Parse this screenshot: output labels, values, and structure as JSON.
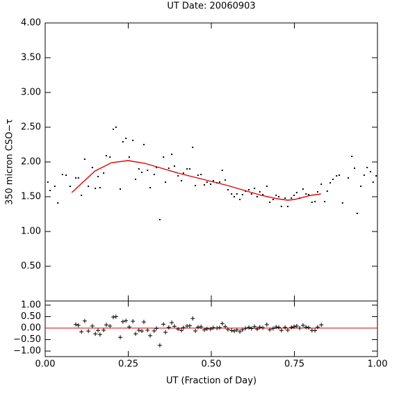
{
  "chart_data": [
    {
      "type": "scatter",
      "title": "UT Date: 20060903",
      "ylabel": "350 micron CSO−τ",
      "xlim": [
        0,
        1
      ],
      "xticks": [
        0,
        0.25,
        0.5,
        0.75,
        1
      ],
      "ylim": [
        0,
        4
      ],
      "yticks": [
        {
          "value": 0.5,
          "label": "0.50"
        },
        {
          "value": 1,
          "label": "1.00"
        },
        {
          "value": 1.5,
          "label": "1.50"
        },
        {
          "value": 2,
          "label": "2.00"
        },
        {
          "value": 2.5,
          "label": "2.50"
        },
        {
          "value": 3,
          "label": "3.00"
        },
        {
          "value": 3.5,
          "label": "3.50"
        },
        {
          "value": 4,
          "label": "4.00"
        }
      ],
      "series": [
        {
          "color": "#000000",
          "marker": "square",
          "x": [
            0.008,
            0.015,
            0.029,
            0.038,
            0.052,
            0.063,
            0.075,
            0.092,
            0.1,
            0.109,
            0.119,
            0.13,
            0.142,
            0.151,
            0.159,
            0.165,
            0.176,
            0.184,
            0.195,
            0.205,
            0.213,
            0.226,
            0.234,
            0.243,
            0.253,
            0.264,
            0.272,
            0.282,
            0.291,
            0.297,
            0.308,
            0.316,
            0.328,
            0.335,
            0.345,
            0.356,
            0.362,
            0.372,
            0.381,
            0.389,
            0.4,
            0.41,
            0.416,
            0.427,
            0.435,
            0.444,
            0.452,
            0.46,
            0.469,
            0.479,
            0.487,
            0.498,
            0.506,
            0.517,
            0.525,
            0.533,
            0.542,
            0.55,
            0.561,
            0.569,
            0.577,
            0.586,
            0.594,
            0.603,
            0.613,
            0.621,
            0.63,
            0.638,
            0.646,
            0.655,
            0.667,
            0.676,
            0.686,
            0.695,
            0.703,
            0.711,
            0.722,
            0.73,
            0.741,
            0.749,
            0.757,
            0.766,
            0.776,
            0.785,
            0.793,
            0.803,
            0.812,
            0.82,
            0.831,
            0.841,
            0.849,
            0.858,
            0.866,
            0.877,
            0.885,
            0.895,
            0.912,
            0.923,
            0.931,
            0.939,
            0.95,
            0.96,
            0.969,
            0.979,
            0.987,
            0.996
          ],
          "values": [
            1.71,
            1.59,
            1.65,
            1.41,
            1.82,
            1.81,
            1.65,
            1.77,
            1.77,
            1.52,
            2.04,
            1.65,
            1.92,
            1.62,
            1.79,
            1.63,
            1.84,
            2.09,
            2.07,
            2.47,
            2.5,
            1.61,
            2.29,
            2.34,
            2.07,
            2.31,
            1.75,
            1.9,
            1.85,
            2.25,
            1.88,
            1.63,
            1.82,
            1.92,
            1.17,
            2.07,
            1.71,
            1.91,
            2.11,
            1.94,
            1.8,
            1.73,
            1.84,
            1.9,
            1.9,
            2.21,
            1.66,
            1.81,
            1.82,
            1.67,
            1.71,
            1.68,
            1.73,
            1.7,
            1.71,
            1.88,
            1.74,
            1.6,
            1.54,
            1.5,
            1.54,
            1.46,
            1.53,
            1.58,
            1.6,
            1.54,
            1.62,
            1.5,
            1.57,
            1.53,
            1.65,
            1.42,
            1.46,
            1.52,
            1.5,
            1.36,
            1.48,
            1.36,
            1.48,
            1.52,
            1.56,
            1.48,
            1.61,
            1.54,
            1.53,
            1.42,
            1.43,
            1.57,
            1.68,
            1.43,
            1.58,
            1.7,
            1.75,
            1.8,
            1.81,
            1.41,
            1.77,
            2.08,
            1.91,
            1.26,
            1.65,
            1.81,
            1.92,
            1.86,
            1.71,
            1.8
          ]
        },
        {
          "color": "#e00000",
          "style": "line",
          "x": [
            0.08,
            0.15,
            0.2,
            0.25,
            0.3,
            0.35,
            0.4,
            0.45,
            0.5,
            0.55,
            0.6,
            0.65,
            0.7,
            0.73,
            0.75,
            0.8,
            0.83
          ],
          "values": [
            1.56,
            1.87,
            1.99,
            2.02,
            1.98,
            1.91,
            1.84,
            1.78,
            1.72,
            1.66,
            1.59,
            1.52,
            1.47,
            1.45,
            1.46,
            1.52,
            1.54
          ]
        }
      ]
    },
    {
      "type": "scatter",
      "xlabel": "UT (Fraction of Day)",
      "xlim": [
        0,
        1
      ],
      "xticks": [
        {
          "value": 0,
          "label": "0.00"
        },
        {
          "value": 0.25,
          "label": "0.25"
        },
        {
          "value": 0.5,
          "label": "0.50"
        },
        {
          "value": 0.75,
          "label": "0.75"
        },
        {
          "value": 1,
          "label": "1.00"
        }
      ],
      "ylim": [
        -1.24,
        1.18
      ],
      "yticks": [
        {
          "value": -1,
          "label": "−1.00"
        },
        {
          "value": -0.5,
          "label": "−0.50"
        },
        {
          "value": 0,
          "label": "0.00"
        },
        {
          "value": 0.5,
          "label": "0.50"
        },
        {
          "value": 1,
          "label": "1.00"
        }
      ],
      "reference_line": 0,
      "reference_color": "#e00000",
      "series": [
        {
          "color": "#000000",
          "marker": "plus",
          "x": [
            0.092,
            0.1,
            0.109,
            0.119,
            0.13,
            0.142,
            0.151,
            0.159,
            0.165,
            0.176,
            0.184,
            0.195,
            0.205,
            0.213,
            0.226,
            0.234,
            0.243,
            0.253,
            0.264,
            0.272,
            0.282,
            0.291,
            0.297,
            0.308,
            0.316,
            0.328,
            0.335,
            0.345,
            0.356,
            0.362,
            0.372,
            0.381,
            0.389,
            0.4,
            0.41,
            0.416,
            0.427,
            0.435,
            0.444,
            0.452,
            0.46,
            0.469,
            0.479,
            0.487,
            0.498,
            0.506,
            0.517,
            0.525,
            0.533,
            0.542,
            0.55,
            0.561,
            0.569,
            0.577,
            0.586,
            0.594,
            0.603,
            0.613,
            0.621,
            0.63,
            0.638,
            0.646,
            0.655,
            0.667,
            0.676,
            0.686,
            0.695,
            0.703,
            0.711,
            0.722,
            0.73,
            0.741,
            0.749,
            0.757,
            0.766,
            0.776,
            0.785,
            0.793,
            0.803,
            0.812,
            0.82,
            0.831
          ],
          "values": [
            0.16,
            0.12,
            -0.16,
            0.31,
            -0.13,
            0.09,
            -0.25,
            -0.1,
            -0.28,
            -0.09,
            0.14,
            0.09,
            0.48,
            0.5,
            -0.4,
            0.28,
            0.32,
            0.05,
            0.3,
            -0.25,
            -0.09,
            -0.13,
            0.27,
            -0.09,
            -0.33,
            -0.12,
            -0.01,
            -0.75,
            0.17,
            -0.18,
            0.03,
            0.24,
            0.08,
            -0.04,
            -0.1,
            0.02,
            0.09,
            0.1,
            0.42,
            -0.12,
            0.04,
            0.06,
            -0.08,
            -0.03,
            -0.04,
            0.02,
            0.0,
            0.02,
            0.2,
            0.07,
            -0.06,
            -0.1,
            -0.13,
            -0.08,
            -0.15,
            -0.07,
            -0.01,
            0.03,
            -0.02,
            0.07,
            -0.04,
            0.04,
            0.01,
            0.15,
            -0.07,
            -0.02,
            0.05,
            0.03,
            -0.1,
            0.03,
            -0.09,
            0.03,
            0.06,
            0.09,
            0.0,
            0.12,
            0.04,
            0.02,
            -0.1,
            -0.1,
            0.04,
            0.14
          ]
        }
      ]
    }
  ]
}
